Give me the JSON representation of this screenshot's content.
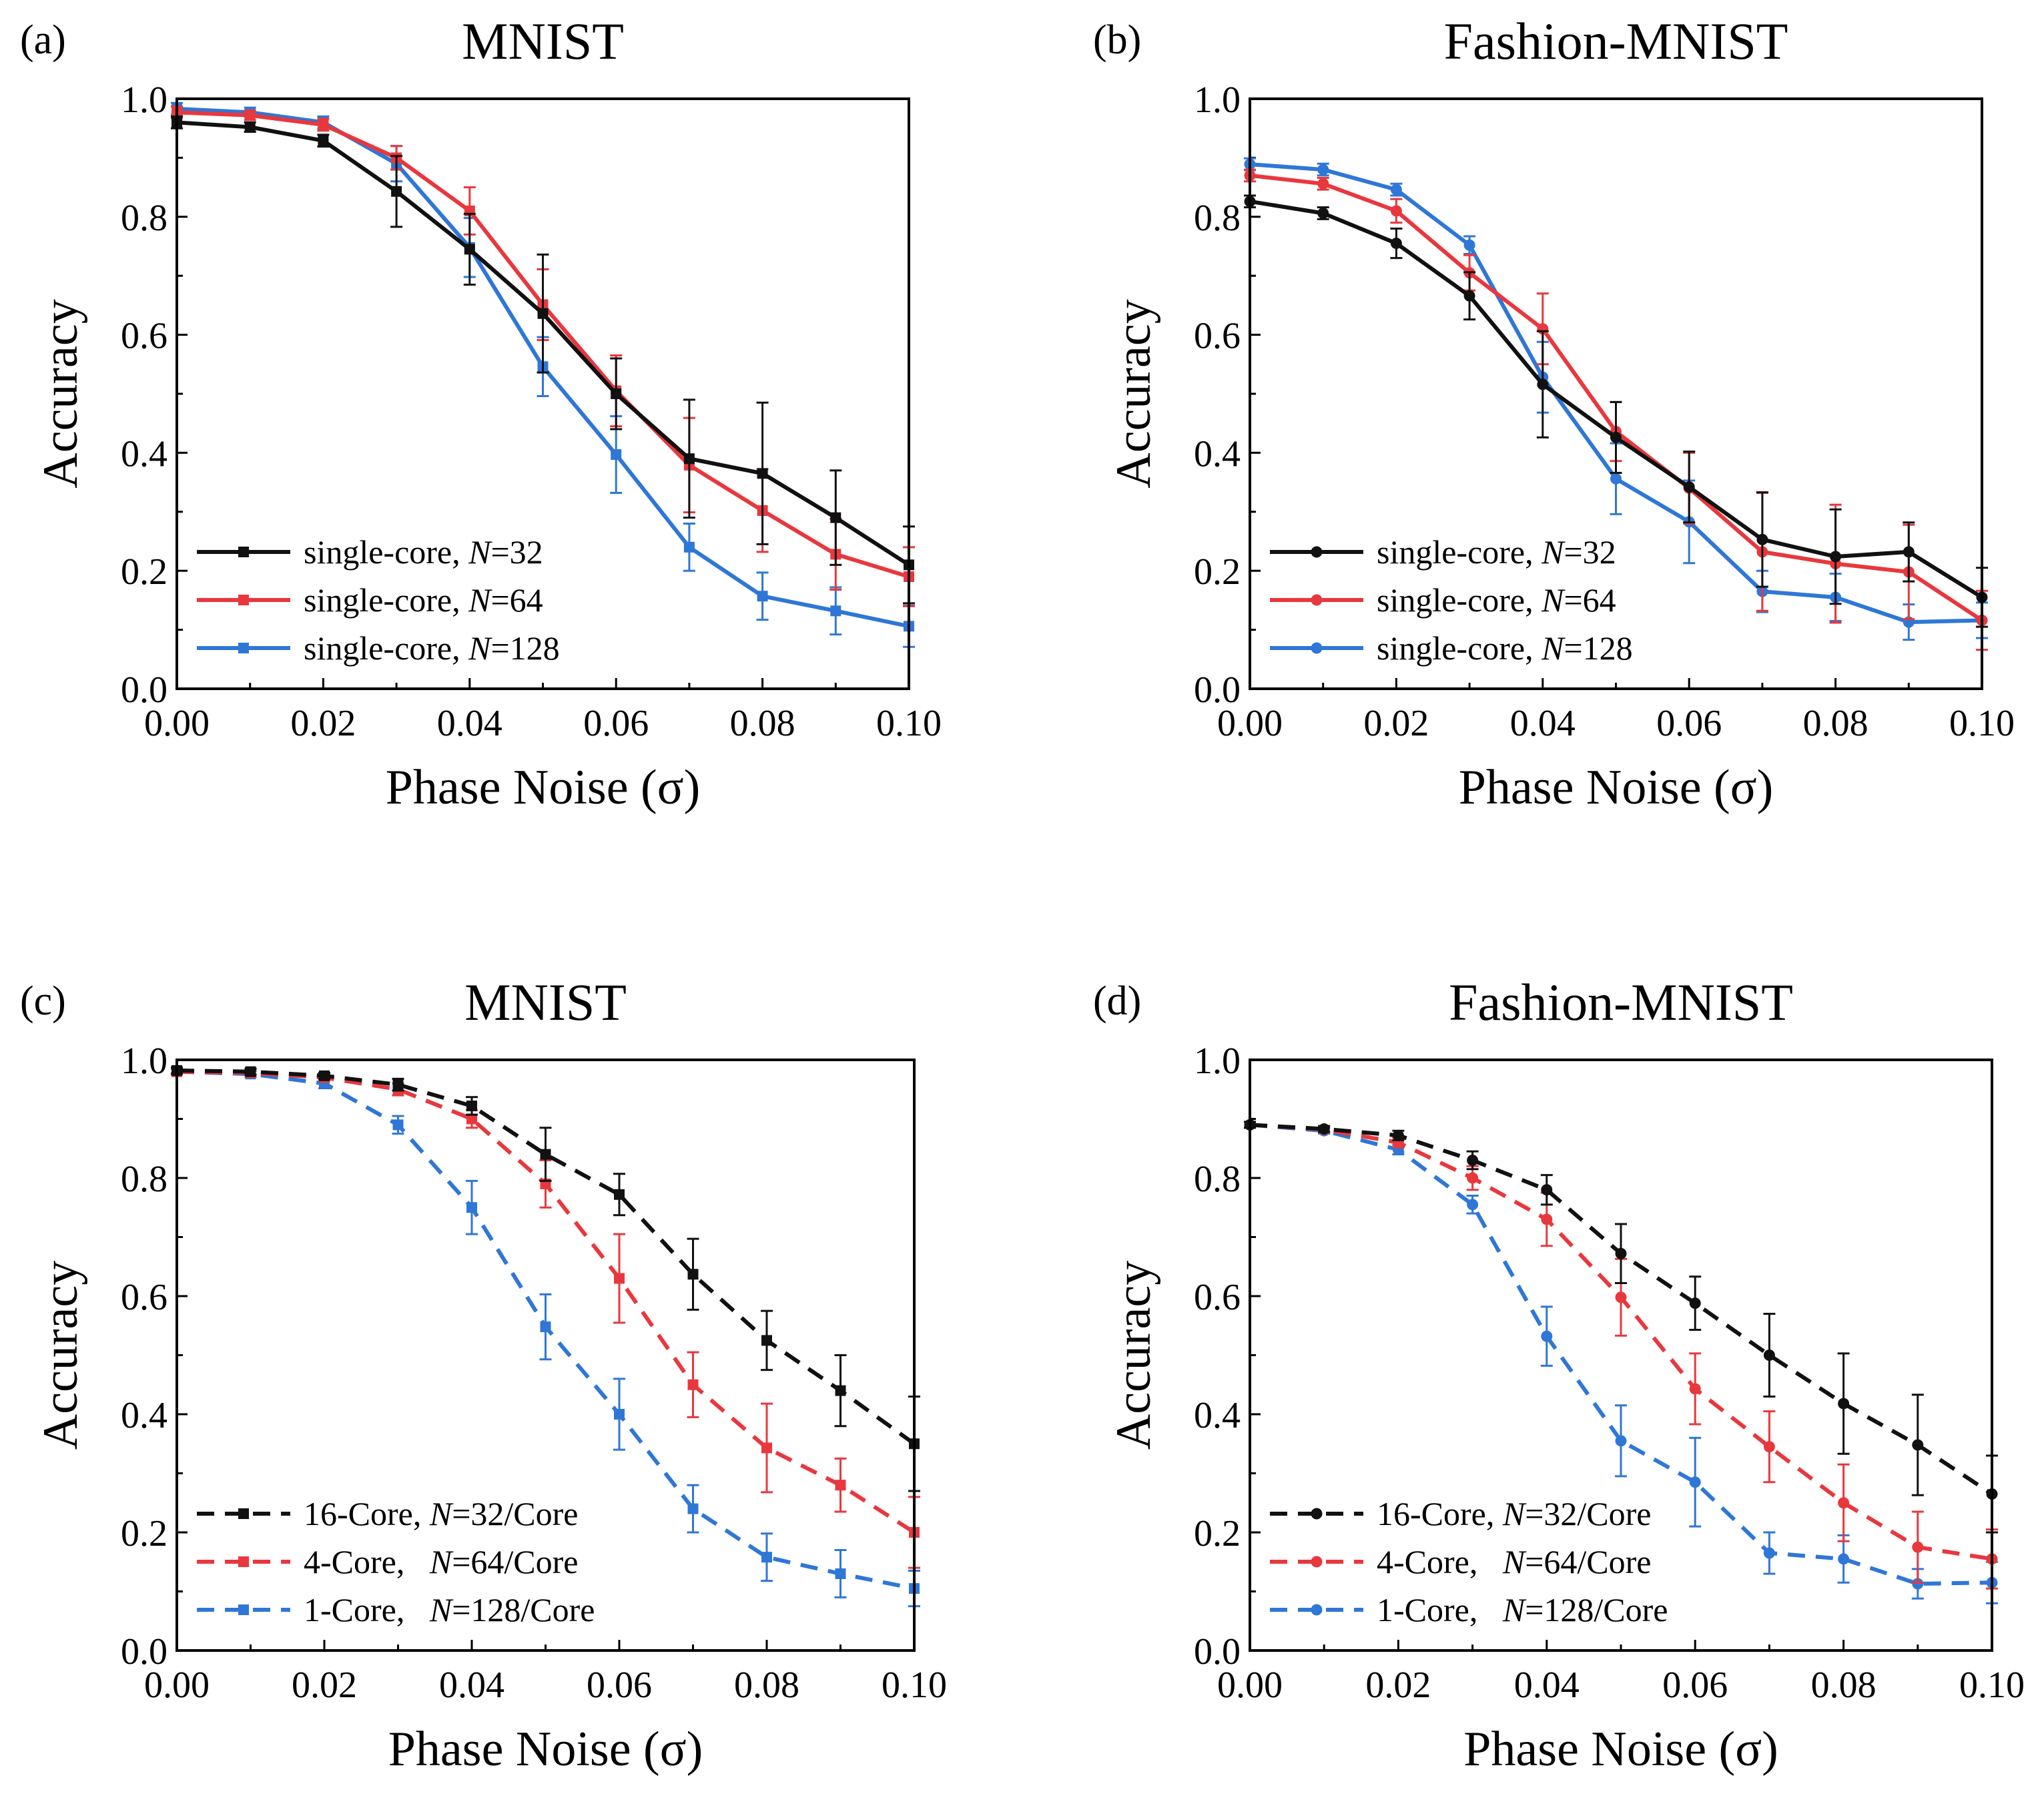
{
  "colors": {
    "black": "#111111",
    "red": "#e8383d",
    "blue": "#2f77d6"
  },
  "chart_data": [
    {
      "type": "line",
      "panel_label": "(a)",
      "title": "MNIST",
      "xlabel": "Phase Noise (σ)",
      "ylabel": "Accuracy",
      "xlim": [
        0,
        0.1
      ],
      "ylim": [
        0,
        1.0
      ],
      "line_style": "solid",
      "marker": "square",
      "x_ticks": [
        "0.00",
        "0.02",
        "0.04",
        "0.06",
        "0.08",
        "0.10"
      ],
      "y_ticks": [
        "0.0",
        "0.2",
        "0.4",
        "0.6",
        "0.8",
        "1.0"
      ],
      "x": [
        0.0,
        0.01,
        0.02,
        0.03,
        0.04,
        0.05,
        0.06,
        0.07,
        0.08,
        0.09,
        0.1
      ],
      "legend": {
        "position": "bottom-left"
      },
      "series": [
        {
          "name": "single-core, N=32",
          "prefix": "single-core, ",
          "var": "N",
          "suffix": "=32",
          "color": "black",
          "values": [
            0.96,
            0.952,
            0.929,
            0.843,
            0.745,
            0.636,
            0.5,
            0.39,
            0.365,
            0.29,
            0.21
          ],
          "errors": [
            0.01,
            0.008,
            0.01,
            0.06,
            0.06,
            0.1,
            0.06,
            0.1,
            0.12,
            0.08,
            0.065
          ]
        },
        {
          "name": "single-core, N=64",
          "prefix": "single-core, ",
          "var": "N",
          "suffix": "=64",
          "color": "red",
          "values": [
            0.977,
            0.972,
            0.956,
            0.9,
            0.81,
            0.651,
            0.505,
            0.379,
            0.302,
            0.228,
            0.19
          ],
          "errors": [
            0.01,
            0.008,
            0.01,
            0.02,
            0.04,
            0.06,
            0.06,
            0.08,
            0.07,
            0.06,
            0.05
          ]
        },
        {
          "name": "single-core, N=128",
          "prefix": "single-core, ",
          "var": "N",
          "suffix": "=128",
          "color": "blue",
          "values": [
            0.983,
            0.977,
            0.96,
            0.89,
            0.748,
            0.546,
            0.397,
            0.24,
            0.157,
            0.132,
            0.106
          ],
          "errors": [
            0.01,
            0.008,
            0.01,
            0.03,
            0.05,
            0.05,
            0.065,
            0.04,
            0.04,
            0.04,
            0.035
          ]
        }
      ]
    },
    {
      "type": "line",
      "panel_label": "(b)",
      "title": "Fashion-MNIST",
      "xlabel": "Phase Noise (σ)",
      "ylabel": "Accuracy",
      "xlim": [
        0,
        0.1
      ],
      "ylim": [
        0,
        1.0
      ],
      "line_style": "solid",
      "marker": "circle",
      "x_ticks": [
        "0.00",
        "0.02",
        "0.04",
        "0.06",
        "0.08",
        "0.10"
      ],
      "y_ticks": [
        "0.0",
        "0.2",
        "0.4",
        "0.6",
        "0.8",
        "1.0"
      ],
      "x": [
        0.0,
        0.01,
        0.02,
        0.03,
        0.04,
        0.05,
        0.06,
        0.07,
        0.08,
        0.09,
        0.1
      ],
      "legend": {
        "position": "bottom-left"
      },
      "series": [
        {
          "name": "single-core, N=32",
          "prefix": "single-core, ",
          "var": "N",
          "suffix": "=32",
          "color": "black",
          "values": [
            0.826,
            0.806,
            0.755,
            0.666,
            0.516,
            0.426,
            0.342,
            0.253,
            0.224,
            0.232,
            0.155
          ],
          "errors": [
            0.01,
            0.01,
            0.025,
            0.04,
            0.09,
            0.06,
            0.06,
            0.08,
            0.08,
            0.05,
            0.05
          ]
        },
        {
          "name": "single-core, N=64",
          "prefix": "single-core, ",
          "var": "N",
          "suffix": "=64",
          "color": "red",
          "values": [
            0.87,
            0.856,
            0.81,
            0.705,
            0.61,
            0.436,
            0.34,
            0.232,
            0.212,
            0.198,
            0.116
          ],
          "errors": [
            0.01,
            0.01,
            0.02,
            0.03,
            0.06,
            0.05,
            0.06,
            0.1,
            0.1,
            0.08,
            0.05
          ]
        },
        {
          "name": "single-core, N=128",
          "prefix": "single-core, ",
          "var": "N",
          "suffix": "=128",
          "color": "blue",
          "values": [
            0.889,
            0.88,
            0.846,
            0.752,
            0.528,
            0.356,
            0.283,
            0.165,
            0.155,
            0.113,
            0.116
          ],
          "errors": [
            0.01,
            0.01,
            0.01,
            0.015,
            0.06,
            0.06,
            0.07,
            0.035,
            0.04,
            0.03,
            0.03
          ]
        }
      ]
    },
    {
      "type": "line",
      "panel_label": "(c)",
      "title": "MNIST",
      "xlabel": "Phase Noise (σ)",
      "ylabel": "Accuracy",
      "xlim": [
        0,
        0.1
      ],
      "ylim": [
        0,
        1.0
      ],
      "line_style": "dashed",
      "marker": "square",
      "x_ticks": [
        "0.00",
        "0.02",
        "0.04",
        "0.06",
        "0.08",
        "0.10"
      ],
      "y_ticks": [
        "0.0",
        "0.2",
        "0.4",
        "0.6",
        "0.8",
        "1.0"
      ],
      "x": [
        0.0,
        0.01,
        0.02,
        0.03,
        0.04,
        0.05,
        0.06,
        0.07,
        0.08,
        0.09,
        0.1
      ],
      "legend": {
        "position": "bottom-left"
      },
      "series": [
        {
          "name": "16-Core, N=32/Core",
          "prefix": "16-Core, ",
          "var": "N",
          "suffix": "=32/Core",
          "color": "black",
          "values": [
            0.982,
            0.98,
            0.973,
            0.958,
            0.922,
            0.84,
            0.772,
            0.637,
            0.525,
            0.44,
            0.35
          ],
          "errors": [
            0.005,
            0.005,
            0.005,
            0.01,
            0.015,
            0.045,
            0.035,
            0.06,
            0.05,
            0.06,
            0.08
          ]
        },
        {
          "name": "4-Core, N=64/Core",
          "prefix": "4-Core,   ",
          "var": "N",
          "suffix": "=64/Core",
          "color": "red",
          "values": [
            0.98,
            0.978,
            0.97,
            0.95,
            0.9,
            0.79,
            0.63,
            0.45,
            0.343,
            0.28,
            0.2
          ],
          "errors": [
            0.005,
            0.005,
            0.005,
            0.01,
            0.015,
            0.04,
            0.075,
            0.055,
            0.075,
            0.045,
            0.06
          ]
        },
        {
          "name": "1-Core, N=128/Core",
          "prefix": "1-Core,   ",
          "var": "N",
          "suffix": "=128/Core",
          "color": "blue",
          "values": [
            0.98,
            0.976,
            0.96,
            0.89,
            0.75,
            0.548,
            0.4,
            0.24,
            0.158,
            0.13,
            0.105
          ],
          "errors": [
            0.005,
            0.005,
            0.008,
            0.015,
            0.045,
            0.055,
            0.06,
            0.04,
            0.04,
            0.04,
            0.03
          ]
        }
      ]
    },
    {
      "type": "line",
      "panel_label": "(d)",
      "title": "Fashion-MNIST",
      "xlabel": "Phase Noise (σ)",
      "ylabel": "Accuracy",
      "xlim": [
        0,
        0.1
      ],
      "ylim": [
        0,
        1.0
      ],
      "line_style": "dashed",
      "marker": "circle",
      "x_ticks": [
        "0.00",
        "0.02",
        "0.04",
        "0.06",
        "0.08",
        "0.10"
      ],
      "y_ticks": [
        "0.0",
        "0.2",
        "0.4",
        "0.6",
        "0.8",
        "1.0"
      ],
      "x": [
        0.0,
        0.01,
        0.02,
        0.03,
        0.04,
        0.05,
        0.06,
        0.07,
        0.08,
        0.09,
        0.1
      ],
      "legend": {
        "position": "bottom-left"
      },
      "series": [
        {
          "name": "16-Core, N=32/Core",
          "prefix": "16-Core, ",
          "var": "N",
          "suffix": "=32/Core",
          "color": "black",
          "values": [
            0.89,
            0.883,
            0.872,
            0.83,
            0.78,
            0.672,
            0.588,
            0.5,
            0.418,
            0.348,
            0.265
          ],
          "errors": [
            0.005,
            0.005,
            0.008,
            0.015,
            0.025,
            0.05,
            0.045,
            0.07,
            0.085,
            0.085,
            0.065
          ]
        },
        {
          "name": "4-Core, N=64/Core",
          "prefix": "4-Core,   ",
          "var": "N",
          "suffix": "=64/Core",
          "color": "red",
          "values": [
            0.89,
            0.882,
            0.86,
            0.8,
            0.73,
            0.598,
            0.443,
            0.345,
            0.25,
            0.175,
            0.155
          ],
          "errors": [
            0.005,
            0.005,
            0.008,
            0.02,
            0.045,
            0.065,
            0.06,
            0.06,
            0.065,
            0.06,
            0.05
          ]
        },
        {
          "name": "1-Core, N=128/Core",
          "prefix": "1-Core,   ",
          "var": "N",
          "suffix": "=128/Core",
          "color": "blue",
          "values": [
            0.89,
            0.88,
            0.848,
            0.755,
            0.532,
            0.355,
            0.285,
            0.165,
            0.155,
            0.113,
            0.115
          ],
          "errors": [
            0.005,
            0.005,
            0.008,
            0.015,
            0.05,
            0.06,
            0.075,
            0.035,
            0.04,
            0.025,
            0.035
          ]
        }
      ]
    }
  ]
}
